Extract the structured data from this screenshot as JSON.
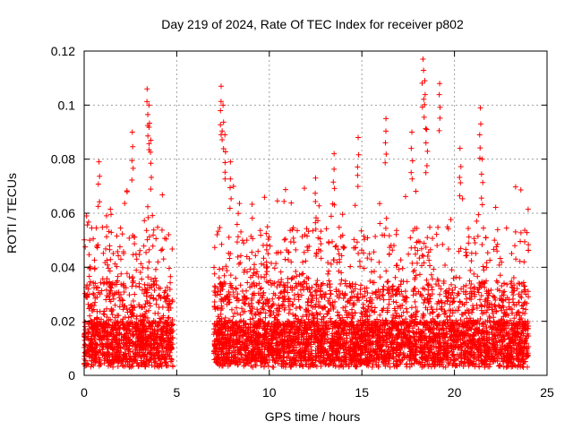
{
  "chart_data": {
    "type": "scatter",
    "title": "Day 219 of 2024, Rate Of TEC Index for receiver p802",
    "xlabel": "GPS time / hours",
    "ylabel": "ROTI / TECUs",
    "xlim": [
      0,
      25
    ],
    "ylim": [
      0,
      0.12
    ],
    "xticks": [
      "0",
      "5",
      "10",
      "15",
      "20",
      "25"
    ],
    "yticks": [
      "0",
      "0.02",
      "0.04",
      "0.06",
      "0.08",
      "0.1",
      "0.12"
    ],
    "grid": true,
    "marker": "+",
    "color": "#ff0000",
    "coverage": [
      {
        "from": 0.0,
        "to": 4.8
      },
      {
        "from": 7.0,
        "to": 24.0
      }
    ],
    "series": [
      {
        "values_note_free": true,
        "x": [
          0.3,
          0.8,
          2.6,
          3.4,
          3.5,
          3.6,
          7.4,
          7.5,
          7.6,
          7.9,
          9.9,
          12.5,
          13.5,
          14.8,
          16.3,
          17.7,
          18.3,
          18.4,
          18.5,
          19.2,
          20.3,
          21.4,
          21.5
        ],
        "y": [
          0.05,
          0.079,
          0.09,
          0.106,
          0.1,
          0.087,
          0.107,
          0.1,
          0.089,
          0.079,
          0.055,
          0.073,
          0.082,
          0.088,
          0.095,
          0.09,
          0.117,
          0.109,
          0.091,
          0.108,
          0.084,
          0.099,
          0.08
        ]
      }
    ]
  }
}
